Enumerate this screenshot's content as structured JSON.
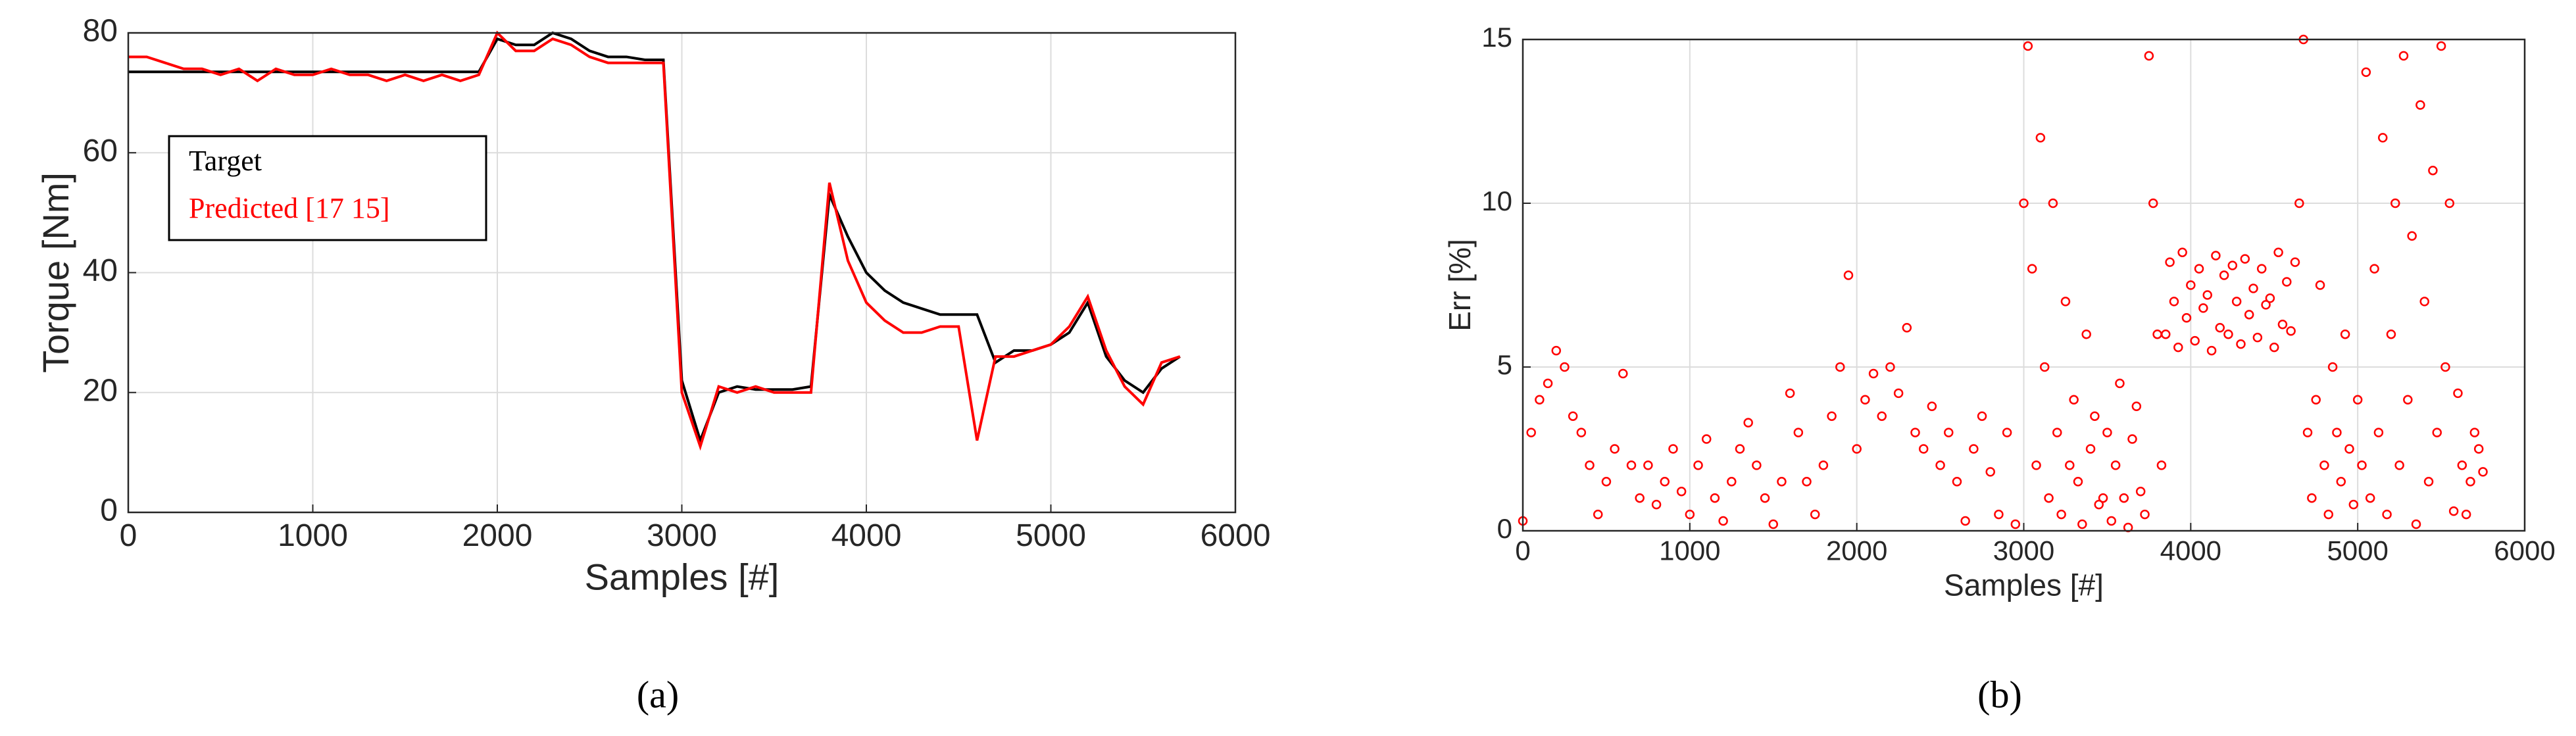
{
  "chart_data": [
    {
      "type": "line",
      "caption": "(a)",
      "ylabel": "Torque [Nm]",
      "xlabel": "Samples [#]",
      "grid": true,
      "legend": "upper left",
      "xlim": [
        0,
        6000
      ],
      "xticks": [
        0,
        1000,
        2000,
        3000,
        4000,
        5000,
        6000
      ],
      "ylim": [
        0,
        80
      ],
      "yticks": [
        0,
        20,
        40,
        60,
        80
      ],
      "x": [
        0,
        100,
        200,
        300,
        400,
        500,
        600,
        700,
        800,
        900,
        1000,
        1100,
        1200,
        1300,
        1400,
        1500,
        1600,
        1700,
        1800,
        1900,
        2000,
        2100,
        2200,
        2300,
        2400,
        2500,
        2600,
        2700,
        2800,
        2900,
        3000,
        3100,
        3200,
        3300,
        3400,
        3500,
        3600,
        3700,
        3800,
        3900,
        4000,
        4100,
        4200,
        4300,
        4400,
        4500,
        4600,
        4700,
        4800,
        4900,
        5000,
        5100,
        5200,
        5300,
        5400,
        5500,
        5600,
        5700
      ],
      "series": [
        {
          "name": "Target",
          "color": "#000000",
          "values": [
            73.5,
            73.5,
            73.5,
            73.5,
            73.5,
            73.5,
            73.5,
            73.5,
            73.5,
            73.5,
            73.5,
            73.5,
            73.5,
            73.5,
            73.5,
            73.5,
            73.5,
            73.5,
            73.5,
            73.5,
            79,
            78,
            78,
            80,
            79,
            77,
            76,
            76,
            75.5,
            75.5,
            22,
            12,
            20,
            21,
            20.5,
            20.5,
            20.5,
            21,
            53,
            46,
            40,
            37,
            35,
            34,
            33,
            33,
            33,
            25,
            27,
            27,
            28,
            30,
            35,
            26,
            22,
            20,
            24,
            26
          ]
        },
        {
          "name": "Predicted [17 15]",
          "color": "#ff0000",
          "values": [
            76,
            76,
            75,
            74,
            74,
            73,
            74,
            72,
            74,
            73,
            73,
            74,
            73,
            73,
            72,
            73,
            72,
            73,
            72,
            73,
            80,
            77,
            77,
            79,
            78,
            76,
            75,
            75,
            75,
            75,
            20,
            11,
            21,
            20,
            21,
            20,
            20,
            20,
            55,
            42,
            35,
            32,
            30,
            30,
            31,
            31,
            12,
            26,
            26,
            27,
            28,
            31,
            36,
            27,
            21,
            18,
            25,
            26
          ]
        }
      ]
    },
    {
      "type": "scatter",
      "caption": "(b)",
      "ylabel": "Err [%]",
      "xlabel": "Samples [#]",
      "grid": true,
      "color": "#ff0000",
      "xlim": [
        0,
        6000
      ],
      "xticks": [
        0,
        1000,
        2000,
        3000,
        4000,
        5000,
        6000
      ],
      "ylim": [
        0,
        15
      ],
      "yticks": [
        0,
        5,
        10,
        15
      ],
      "x": [
        0,
        50,
        100,
        150,
        200,
        250,
        300,
        350,
        400,
        450,
        500,
        550,
        600,
        650,
        700,
        750,
        800,
        850,
        900,
        950,
        1000,
        1050,
        1100,
        1150,
        1200,
        1250,
        1300,
        1350,
        1400,
        1450,
        1500,
        1550,
        1600,
        1650,
        1700,
        1750,
        1800,
        1850,
        1900,
        1950,
        2000,
        2050,
        2100,
        2150,
        2200,
        2250,
        2300,
        2350,
        2400,
        2450,
        2500,
        2550,
        2600,
        2650,
        2700,
        2750,
        2800,
        2850,
        2900,
        2950,
        3000,
        3025,
        3050,
        3075,
        3100,
        3125,
        3150,
        3175,
        3200,
        3225,
        3250,
        3275,
        3300,
        3325,
        3350,
        3375,
        3400,
        3425,
        3450,
        3475,
        3500,
        3525,
        3550,
        3575,
        3600,
        3625,
        3650,
        3675,
        3700,
        3725,
        3750,
        3775,
        3800,
        3825,
        3850,
        3875,
        3900,
        3925,
        3950,
        3975,
        4000,
        4025,
        4050,
        4075,
        4100,
        4125,
        4150,
        4175,
        4200,
        4225,
        4250,
        4275,
        4300,
        4325,
        4350,
        4375,
        4400,
        4425,
        4450,
        4475,
        4500,
        4525,
        4550,
        4575,
        4600,
        4625,
        4650,
        4675,
        4700,
        4725,
        4750,
        4775,
        4800,
        4825,
        4850,
        4875,
        4900,
        4925,
        4950,
        4975,
        5000,
        5025,
        5050,
        5075,
        5100,
        5125,
        5150,
        5175,
        5200,
        5225,
        5250,
        5275,
        5300,
        5325,
        5350,
        5375,
        5400,
        5425,
        5450,
        5475,
        5500,
        5525,
        5550,
        5575,
        5600,
        5625,
        5650,
        5675,
        5700,
        5725,
        5750
      ],
      "values": [
        0.3,
        3,
        4,
        4.5,
        5.5,
        5,
        3.5,
        3,
        2,
        0.5,
        1.5,
        2.5,
        4.8,
        2,
        1,
        2,
        0.8,
        1.5,
        2.5,
        1.2,
        0.5,
        2,
        2.8,
        1,
        0.3,
        1.5,
        2.5,
        3.3,
        2,
        1,
        0.2,
        1.5,
        4.2,
        3,
        1.5,
        0.5,
        2,
        3.5,
        5,
        7.8,
        2.5,
        4,
        4.8,
        3.5,
        5,
        4.2,
        6.2,
        3,
        2.5,
        3.8,
        2,
        3,
        1.5,
        0.3,
        2.5,
        3.5,
        1.8,
        0.5,
        3,
        0.2,
        10,
        14.8,
        8,
        2,
        12,
        5,
        1,
        10,
        3,
        0.5,
        7,
        2,
        4,
        1.5,
        0.2,
        6,
        2.5,
        3.5,
        0.8,
        1,
        3,
        0.3,
        2,
        4.5,
        1,
        0.1,
        2.8,
        3.8,
        1.2,
        0.5,
        14.5,
        10,
        6,
        2,
        6,
        8.2,
        7,
        5.6,
        8.5,
        6.5,
        7.5,
        5.8,
        8,
        6.8,
        7.2,
        5.5,
        8.4,
        6.2,
        7.8,
        6,
        8.1,
        7,
        5.7,
        8.3,
        6.6,
        7.4,
        5.9,
        8,
        6.9,
        7.1,
        5.6,
        8.5,
        6.3,
        7.6,
        6.1,
        8.2,
        10,
        15,
        3,
        1,
        4,
        7.5,
        2,
        0.5,
        5,
        3,
        1.5,
        6,
        2.5,
        0.8,
        4,
        2,
        14,
        1,
        8,
        3,
        12,
        0.5,
        6,
        10,
        2,
        14.5,
        4,
        9,
        0.2,
        13,
        7,
        1.5,
        11,
        3,
        14.8,
        5,
        10,
        0.6,
        4.2,
        2,
        0.5,
        1.5,
        3,
        2.5,
        1.8
      ]
    }
  ]
}
